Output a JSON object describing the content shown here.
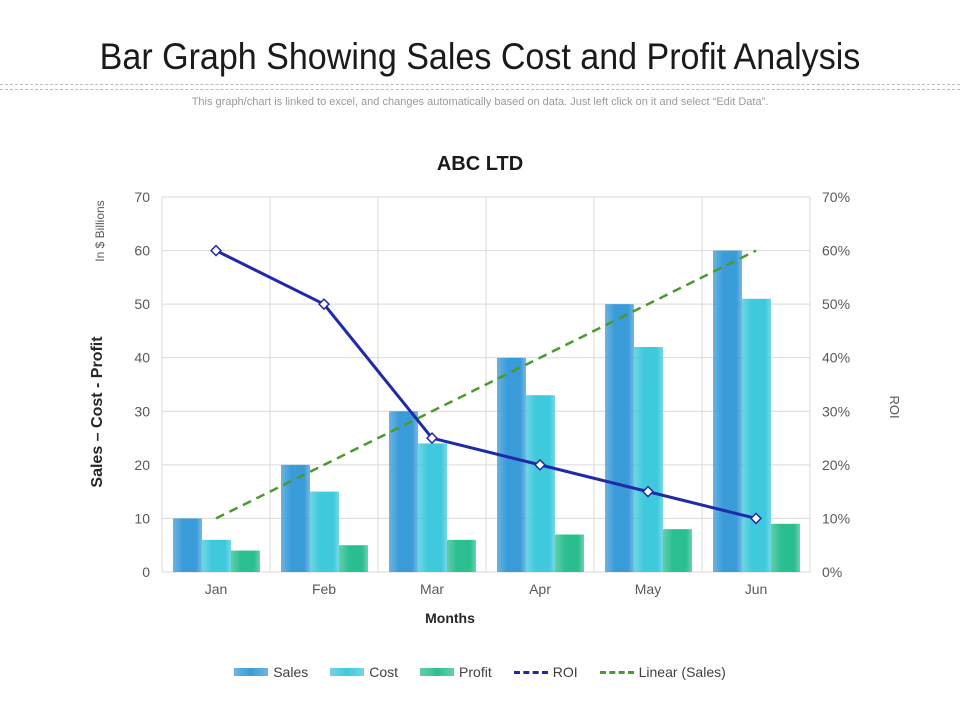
{
  "page": {
    "title": "Bar Graph Showing Sales Cost and Profit Analysis",
    "subtitle": "This graph/chart is linked to excel, and changes automatically based on data. Just left click on it and select “Edit Data”."
  },
  "colors": {
    "sales": "#3a9bd9",
    "cost": "#3ec9dd",
    "profit": "#2bbf8f",
    "roi": "#1f2aa8",
    "linear": "#4a9a2c",
    "grid": "#d9d9d9"
  },
  "chart_data": {
    "type": "bar",
    "title": "ABC LTD",
    "xlabel": "Months",
    "ylabel": "Sales – Cost - Profit",
    "ylabel_unit": "In $ Billions",
    "y2label": "ROI",
    "ylim": [
      0,
      70
    ],
    "y_ticks": [
      0,
      10,
      20,
      30,
      40,
      50,
      60,
      70
    ],
    "y2lim": [
      0,
      70
    ],
    "y2_ticks": [
      "0%",
      "10%",
      "20%",
      "30%",
      "40%",
      "50%",
      "60%",
      "70%"
    ],
    "categories": [
      "Jan",
      "Feb",
      "Mar",
      "Apr",
      "May",
      "Jun"
    ],
    "series": [
      {
        "name": "Sales",
        "type": "bar",
        "values": [
          10,
          20,
          30,
          40,
          50,
          60
        ]
      },
      {
        "name": "Cost",
        "type": "bar",
        "values": [
          6,
          15,
          24,
          33,
          42,
          51
        ]
      },
      {
        "name": "Profit",
        "type": "bar",
        "values": [
          4,
          5,
          6,
          7,
          8,
          9
        ]
      },
      {
        "name": "ROI",
        "type": "line",
        "axis": "secondary",
        "unit": "%",
        "values": [
          60,
          50,
          25,
          20,
          15,
          10
        ]
      },
      {
        "name": "Linear (Sales)",
        "type": "trendline",
        "values": [
          10,
          20,
          30,
          40,
          50,
          60
        ]
      }
    ],
    "legend_position": "bottom"
  }
}
